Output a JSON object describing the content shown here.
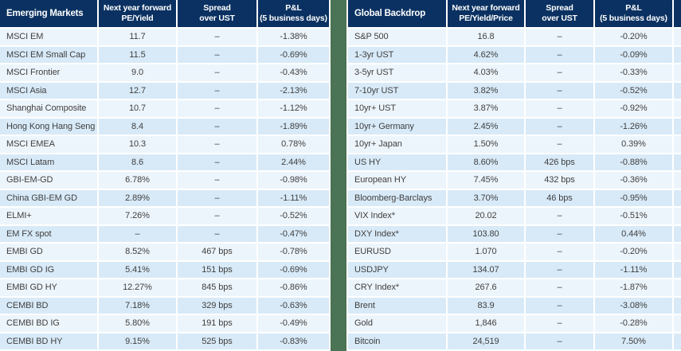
{
  "colors": {
    "header_navy": "#0a3161",
    "divider_green": "#4b7355",
    "row_light": "#edf5fc",
    "row_dark": "#d8eaf8",
    "text_gray": "#3f3f3f"
  },
  "tables": [
    {
      "title": "Emerging Markets",
      "columns": [
        {
          "line1": "Next year forward",
          "line2": "PE/Yield"
        },
        {
          "line1": "Spread",
          "line2": "over UST"
        },
        {
          "line1": "P&L",
          "line2": "(5 business days)"
        }
      ],
      "rows": [
        {
          "label": "MSCI EM",
          "value": "11.7",
          "spread": "–",
          "pnl": "-1.38%"
        },
        {
          "label": "MSCI EM Small Cap",
          "value": "11.5",
          "spread": "–",
          "pnl": "-0.69%"
        },
        {
          "label": "MSCI Frontier",
          "value": "9.0",
          "spread": "–",
          "pnl": "-0.43%"
        },
        {
          "label": "MSCI Asia",
          "value": "12.7",
          "spread": "–",
          "pnl": "-2.13%"
        },
        {
          "label": "Shanghai Composite",
          "value": "10.7",
          "spread": "–",
          "pnl": "-1.12%"
        },
        {
          "label": "Hong Kong Hang Seng",
          "value": "8.4",
          "spread": "–",
          "pnl": "-1.89%"
        },
        {
          "label": "MSCI EMEA",
          "value": "10.3",
          "spread": "–",
          "pnl": "0.78%"
        },
        {
          "label": "MSCI Latam",
          "value": "8.6",
          "spread": "–",
          "pnl": "2.44%"
        },
        {
          "label": "GBI-EM-GD",
          "value": "6.78%",
          "spread": "–",
          "pnl": "-0.98%"
        },
        {
          "label": "China GBI-EM GD",
          "value": "2.89%",
          "spread": "–",
          "pnl": "-1.11%"
        },
        {
          "label": "ELMI+",
          "value": "7.26%",
          "spread": "–",
          "pnl": "-0.52%"
        },
        {
          "label": "EM FX spot",
          "value": "–",
          "spread": "–",
          "pnl": "-0.47%"
        },
        {
          "label": "EMBI GD",
          "value": "8.52%",
          "spread": "467 bps",
          "pnl": "-0.78%"
        },
        {
          "label": "EMBI GD IG",
          "value": "5.41%",
          "spread": "151 bps",
          "pnl": "-0.69%"
        },
        {
          "label": "EMBI GD HY",
          "value": "12.27%",
          "spread": "845 bps",
          "pnl": "-0.86%"
        },
        {
          "label": "CEMBI BD",
          "value": "7.18%",
          "spread": "329 bps",
          "pnl": "-0.63%"
        },
        {
          "label": "CEMBI BD IG",
          "value": "5.80%",
          "spread": "191 bps",
          "pnl": "-0.49%"
        },
        {
          "label": "CEMBI BD HY",
          "value": "9.15%",
          "spread": "525 bps",
          "pnl": "-0.83%"
        }
      ]
    },
    {
      "title": "Global Backdrop",
      "columns": [
        {
          "line1": "Next year forward",
          "line2": "PE/Yield/Price"
        },
        {
          "line1": "Spread",
          "line2": "over UST"
        },
        {
          "line1": "P&L",
          "line2": "(5 business days)"
        }
      ],
      "rows": [
        {
          "label": "S&P 500",
          "value": "16.8",
          "spread": "–",
          "pnl": "-0.20%"
        },
        {
          "label": "1-3yr UST",
          "value": "4.62%",
          "spread": "–",
          "pnl": "-0.09%"
        },
        {
          "label": "3-5yr UST",
          "value": "4.03%",
          "spread": "–",
          "pnl": "-0.33%"
        },
        {
          "label": "7-10yr UST",
          "value": "3.82%",
          "spread": "–",
          "pnl": "-0.52%"
        },
        {
          "label": "10yr+ UST",
          "value": "3.87%",
          "spread": "–",
          "pnl": "-0.92%"
        },
        {
          "label": "10yr+ Germany",
          "value": "2.45%",
          "spread": "–",
          "pnl": "-1.26%"
        },
        {
          "label": "10yr+ Japan",
          "value": "1.50%",
          "spread": "–",
          "pnl": "0.39%"
        },
        {
          "label": "US HY",
          "value": "8.60%",
          "spread": "426 bps",
          "pnl": "-0.88%"
        },
        {
          "label": "European HY",
          "value": "7.45%",
          "spread": "432 bps",
          "pnl": "-0.36%"
        },
        {
          "label": "Bloomberg-Barclays",
          "value": "3.70%",
          "spread": "46 bps",
          "pnl": "-0.95%"
        },
        {
          "label": "VIX Index*",
          "value": "20.02",
          "spread": "–",
          "pnl": "-0.51%"
        },
        {
          "label": "DXY Index*",
          "value": "103.80",
          "spread": "–",
          "pnl": "0.44%"
        },
        {
          "label": "EURUSD",
          "value": "1.070",
          "spread": "–",
          "pnl": "-0.20%"
        },
        {
          "label": "USDJPY",
          "value": "134.07",
          "spread": "–",
          "pnl": "-1.11%"
        },
        {
          "label": "CRY Index*",
          "value": "267.6",
          "spread": "–",
          "pnl": "-1.87%"
        },
        {
          "label": "Brent",
          "value": "83.9",
          "spread": "–",
          "pnl": "-3.08%"
        },
        {
          "label": "Gold",
          "value": "1,846",
          "spread": "–",
          "pnl": "-0.28%"
        },
        {
          "label": "Bitcoin",
          "value": "24,519",
          "spread": "–",
          "pnl": "7.50%"
        }
      ]
    }
  ]
}
